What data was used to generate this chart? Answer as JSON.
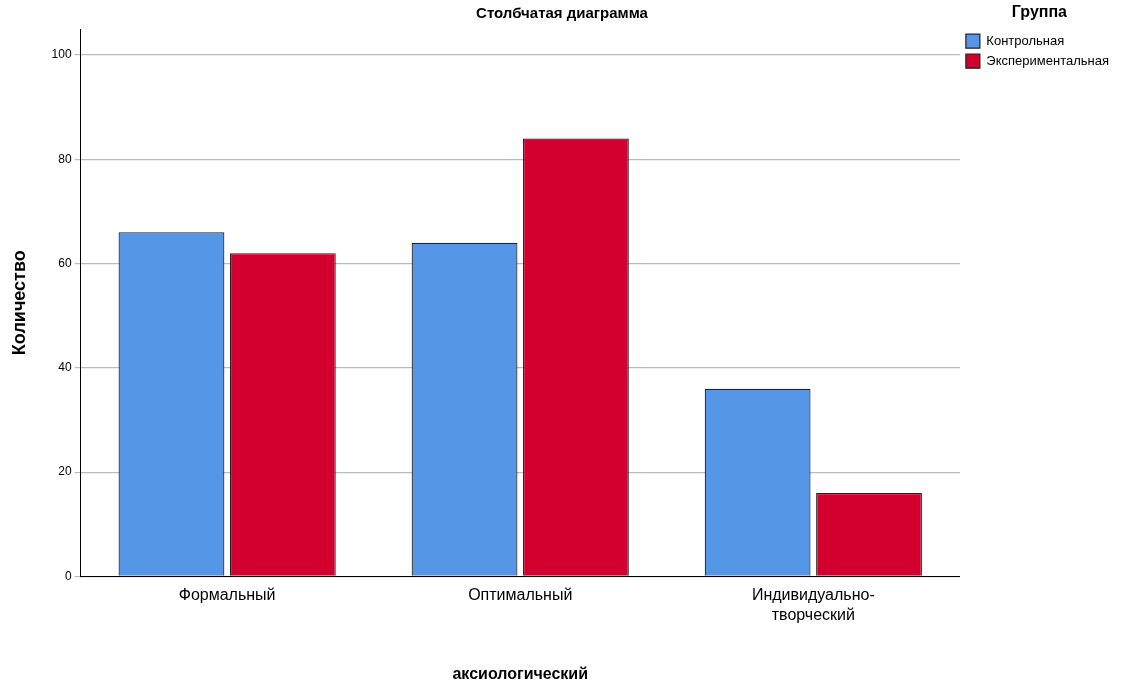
{
  "chart_data": {
    "type": "bar",
    "title": "Столбчатая диаграмма",
    "xlabel": "аксиологический",
    "ylabel": "Количество",
    "legend_title": "Группа",
    "categories": [
      "Формальный",
      "Оптимальный",
      "Индивидуально-творческий"
    ],
    "series": [
      {
        "name": "Контрольная",
        "color": "#5596e6",
        "values": [
          66,
          64,
          36
        ]
      },
      {
        "name": "Экспериментальная",
        "color": "#d3002f",
        "values": [
          62,
          84,
          16
        ]
      }
    ],
    "ylim": [
      0,
      105
    ],
    "yticks": [
      0,
      20,
      40,
      60,
      80,
      100
    ],
    "grid": "y",
    "legend": "right"
  }
}
